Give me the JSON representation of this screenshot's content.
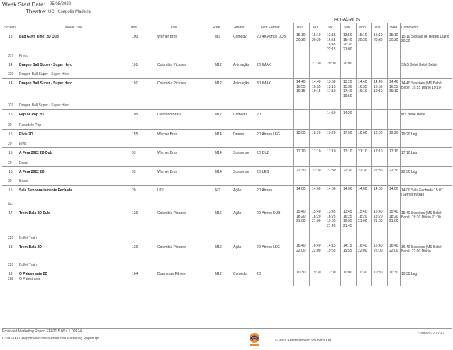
{
  "header": {
    "week_label": "Week Start Date:",
    "week_value": "25/08/2022",
    "theatre_label": "Theatre:",
    "theatre_value": "UCI Kinepolis Madeira",
    "horarios": "HORÁRIOS"
  },
  "columns": [
    "Screen",
    "Movie Title",
    "Time",
    "Dist",
    "Rate",
    "Gender",
    "Film Format",
    "Thu",
    "Fri",
    "Sat",
    "Sun",
    "Mon",
    "Tue",
    "Wed",
    "Comments"
  ],
  "rows": [
    {
      "screen": "13",
      "title": "Bad Guys (The) 2D Dub",
      "time": "100",
      "dist": "Warner Bros",
      "rate": "M6",
      "gender": "Comedy",
      "format": "2D 4K Atmos DUB",
      "thu": "15:10\n20:30",
      "fri": "15:10\n20:30",
      "sat": "13:15\n16:55\n18:45\n22:15",
      "sun": "13:50\n15:40\n20:30\n21:00",
      "mon": "15:10\n20:30",
      "tue": "15:10\n20:30",
      "wed": "15:10\n20:30",
      "comments": "15:10 Sessão de Bebés Diário 20:30",
      "sub_screen": "377",
      "sub_title": "Fredo"
    },
    {
      "screen": "14",
      "title": "Dragon Ball Super - Super Hero",
      "time": "101",
      "dist": "Columbia Pictures",
      "rate": "M12",
      "gender": "Animação",
      "format": "2D IMAX",
      "thu": "",
      "fri": "21:30",
      "sat": "20:00",
      "sun": "20:00",
      "mon": "",
      "tue": "",
      "wed": "",
      "comments": "SMS Bebé Bebé Bebé",
      "sub_screen": "330",
      "sub_title": "Dragon Ball Super - Super Hero"
    },
    {
      "screen": "14",
      "title": "Dragon Ball Super - Super Hero",
      "time": "101",
      "dist": "Columbia Pictures",
      "rate": "M12",
      "gender": "Animação",
      "format": "3D IMAX",
      "thu": "14:40\n16:55\n19:15",
      "fri": "14:40\n16:55\n19:15",
      "sat": "13:00\n15:15\n17:10",
      "sun": "13:20\n15:30\n17:40\n19:50",
      "mon": "14:40\n16:55\n19:10",
      "tue": "14:40\n16:55\n19:10",
      "wed": "14:40\n16:55\n19:10",
      "comments": "14:40 Sessões (MS Bebé Bebé) 16:55 Diário 19:10",
      "sub_screen": "329",
      "sub_title": "Dragon Ball Super - Super Hero"
    },
    {
      "screen": "15",
      "title": "Fapule Pop 2D",
      "time": "105",
      "dist": "Diamond Brasil",
      "rate": "M12",
      "gender": "Comédia",
      "format": "2D",
      "thu": "",
      "fri": "",
      "sat": "14:50",
      "sun": "14:20",
      "mon": "",
      "tue": "",
      "wed": "",
      "comments": "MS Bebé Bebé",
      "sub_screen": "20",
      "sub_title": "Pesadelo Pop"
    },
    {
      "screen": "16",
      "title": "Elvis 2D",
      "time": "155",
      "dist": "Warner Bros",
      "rate": "M14",
      "gender": "Drama",
      "format": "2D Atmos LEG",
      "thu": "18:00",
      "fri": "18:20",
      "sat": "19:20",
      "sun": "17:50",
      "mon": "18:00",
      "tue": "18:00",
      "wed": "19:20",
      "comments": "19:20 Leg",
      "sub_screen": "20",
      "sub_title": "Elvis"
    },
    {
      "screen": "15",
      "title": "A Fera 2022 2D Dub",
      "time": "93",
      "dist": "Warner Bros",
      "rate": "M14",
      "gender": "Suspense",
      "format": "2D DUB",
      "thu": "17:10",
      "fri": "17:10",
      "sat": "17:10",
      "sun": "17:10",
      "mon": "21:10",
      "tue": "17:10",
      "wed": "17:10",
      "comments": "17:10 Leg",
      "sub_screen": "20",
      "sub_title": "Beast"
    },
    {
      "screen": "15",
      "title": "A Fera 2022 2D",
      "time": "93",
      "dist": "Warner Bros",
      "rate": "M14",
      "gender": "Suspense",
      "format": "2D LEG",
      "thu": "22:30",
      "fri": "22:30",
      "sat": "22:30",
      "sun": "22:30",
      "mon": "22:30",
      "tue": "22:30",
      "wed": "22:30",
      "comments": "22:30 Leg",
      "sub_screen": "20",
      "sub_title": "Beast"
    },
    {
      "screen": "15",
      "title": "Sala Temporariamente Fechada",
      "time": "20",
      "dist": "UCI",
      "rate": "NO",
      "gender": "Ação",
      "format": "2D Atmos",
      "thu": "14:00",
      "fri": "14:00",
      "sat": "14:00",
      "sun": "14:00",
      "mon": "14:00",
      "tue": "14:00",
      "wed": "14:00",
      "comments": "14:00 Sala Fechada 15:07 (Sem previsão)",
      "sub_screen": "tbc",
      "sub_title": ""
    },
    {
      "screen": "17",
      "title": "Trem-Bala 2D Dub",
      "time": "126",
      "dist": "Columbia Pictures",
      "rate": "M16",
      "gender": "Ação",
      "format": "2D Atmos DUB",
      "thu": "15:40\n18:20\n21:00",
      "fri": "15:40\n18:20\n21:00",
      "sat": "13:45\n16:25\n19:05\n21:45",
      "sun": "13:45\n16:25\n19:05\n21:45",
      "mon": "15:40\n18:20\n21:00",
      "tue": "15:40\n18:20\n21:00",
      "wed": "15:40\n18:20\n21:00",
      "comments": "15:40 Sessões (MS Bebé Bebé) 18:20 Diário 21:00",
      "sub_screen": "220",
      "sub_title": "Bullet Train"
    },
    {
      "screen": "18",
      "title": "Trem-Bala 2D",
      "time": "126",
      "dist": "Columbia Pictures",
      "rate": "M16",
      "gender": "Ação",
      "format": "2D Atmos LEG",
      "thu": "16:40\n22:00",
      "fri": "16:40\n22:00",
      "sat": "14:15\n19:55",
      "sun": "14:15\n19:55",
      "mon": "16:40\n22:00",
      "tue": "16:40\n22:00",
      "wed": "16:40\n22:00",
      "comments": "16:40 Sessões (MS Bebé Bebé) 22:00 Diário",
      "sub_screen": "220",
      "sub_title": "Bullet Train"
    },
    {
      "screen": "19",
      "title": "O Palestrante 2D",
      "time": "104",
      "dist": "Downtown Filmes",
      "rate": "M12",
      "gender": "Comédia",
      "format": "2D",
      "thu": "10:30",
      "fri": "19:30",
      "sat": "12:00",
      "sun": "10:00",
      "mon": "10:30",
      "tue": "10:30",
      "wed": "10:30",
      "comments": "10:30 Leg",
      "sub_screen": "282",
      "sub_title": "O Palestrante"
    }
  ],
  "footer": {
    "left1": "Produced Marketing Report EF021 5.00 v 1.00F24",
    "left2": "C:\\INSTALL\\Report Files\\Vista\\Produced Marketing Report.rpt",
    "company": "© Vista Entertainment Solutions Ltd",
    "datetime": "23/08/2022 17:42",
    "page": "1"
  }
}
